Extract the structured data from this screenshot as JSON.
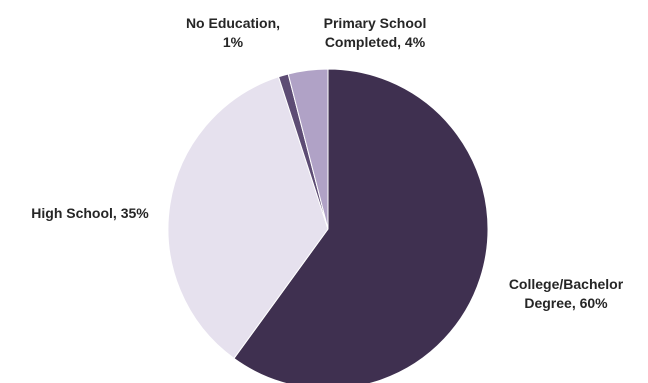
{
  "chart_data": {
    "type": "pie",
    "title": "",
    "slices": [
      {
        "label": "College/Bachelor Degree",
        "value": 60,
        "value_label": "60%",
        "color": "#3f3050"
      },
      {
        "label": "High School",
        "value": 35,
        "value_label": "35%",
        "color": "#e6e1ee"
      },
      {
        "label": "No Education",
        "value": 1,
        "value_label": "1%",
        "color": "#5d4c74"
      },
      {
        "label": "Primary School Completed",
        "value": 4,
        "value_label": "4%",
        "color": "#b0a2c6"
      }
    ],
    "legend": "none",
    "data_labels": "outside"
  }
}
